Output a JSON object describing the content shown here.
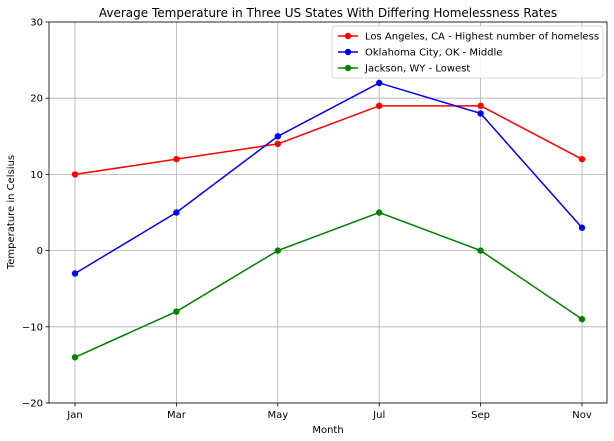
{
  "chart_data": {
    "type": "line",
    "title": "Average Temperature in Three US States With Differing Homelessness Rates",
    "xlabel": "Month",
    "ylabel": "Temperature in Celsius",
    "categories": [
      "Jan",
      "Mar",
      "May",
      "Jul",
      "Sep",
      "Nov"
    ],
    "ylim": [
      -20,
      30
    ],
    "yticks": [
      -20,
      -10,
      0,
      10,
      20,
      30
    ],
    "grid": true,
    "legend_position": "top-right",
    "series": [
      {
        "name": "Los Angeles, CA - Highest number of homeless",
        "color": "#ff0000",
        "values": [
          10,
          12,
          14,
          19,
          19,
          12
        ]
      },
      {
        "name": "Oklahoma City, OK - Middle",
        "color": "#0000ff",
        "values": [
          -3,
          5,
          15,
          22,
          18,
          3
        ]
      },
      {
        "name": "Jackson, WY - Lowest",
        "color": "#008000",
        "values": [
          -14,
          -8,
          0,
          5,
          0,
          -9
        ]
      }
    ]
  }
}
